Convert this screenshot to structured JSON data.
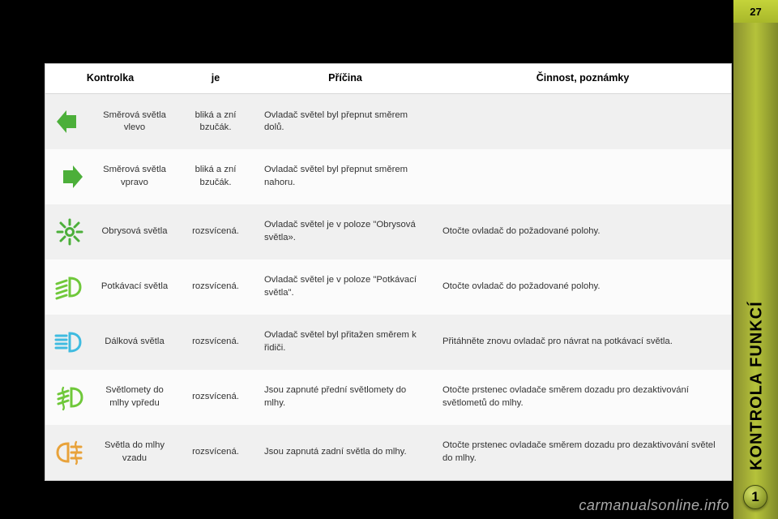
{
  "page": {
    "number": "27",
    "section_label": "KONTROLA FUNKCÍ",
    "badge_number": "1",
    "watermark": "carmanualsonline.info"
  },
  "colors": {
    "green": "#4caf3a",
    "amber": "#e8a23a",
    "blue": "#3fbbe0",
    "lime": "#6fc83a",
    "row_odd": "#f0f0f0",
    "row_even": "#fbfbfb",
    "side": "#a8b82a"
  },
  "table": {
    "headers": {
      "indicator": "Kontrolka",
      "status": "je",
      "cause": "Příčina",
      "action": "Činnost, poznámky"
    },
    "rows": [
      {
        "icon": "arrow-left",
        "icon_color": "#4caf3a",
        "name": "Směrová světla vlevo",
        "status": "bliká a zní bzučák.",
        "cause": "Ovladač světel byl přepnut směrem dolů.",
        "action": ""
      },
      {
        "icon": "arrow-right",
        "icon_color": "#4caf3a",
        "name": "Směrová světla vpravo",
        "status": "bliká a zní bzučák.",
        "cause": "Ovladač světel byl přepnut směrem nahoru.",
        "action": ""
      },
      {
        "icon": "sidelight",
        "icon_color": "#4caf3a",
        "name": "Obrysová světla",
        "status": "rozsvícená.",
        "cause": "Ovladač světel je v poloze \"Obrysová světla».",
        "action": "Otočte ovladač do požadované polohy."
      },
      {
        "icon": "low-beam",
        "icon_color": "#6fc83a",
        "name": "Potkávací světla",
        "status": "rozsvícená.",
        "cause": "Ovladač světel je v poloze \"Potkávací světla\".",
        "action": "Otočte ovladač do požadované polohy."
      },
      {
        "icon": "high-beam",
        "icon_color": "#3fbbe0",
        "name": "Dálková světla",
        "status": "rozsvícená.",
        "cause": "Ovladač světel byl přitažen směrem k řidiči.",
        "action": "Přitáhněte znovu ovladač pro návrat na potkávací světla."
      },
      {
        "icon": "fog-front",
        "icon_color": "#6fc83a",
        "name": "Světlomety do mlhy vpředu",
        "status": "rozsvícená.",
        "cause": "Jsou zapnuté přední světlomety do mlhy.",
        "action": "Otočte prstenec ovladače směrem dozadu pro dezaktivování světlometů do mlhy."
      },
      {
        "icon": "fog-rear",
        "icon_color": "#e8a23a",
        "name": "Světla do mlhy vzadu",
        "status": "rozsvícená.",
        "cause": "Jsou zapnutá zadní světla do mlhy.",
        "action": "Otočte prstenec ovladače směrem dozadu pro dezaktivování světel do mlhy."
      }
    ]
  }
}
